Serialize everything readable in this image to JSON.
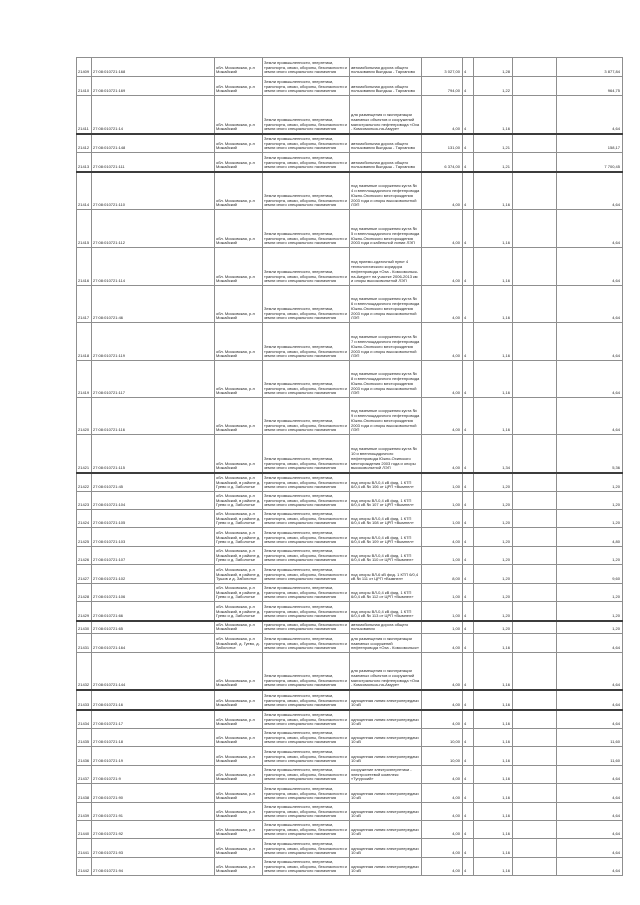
{
  "document": {
    "kind": "land-parcel-valuation-table-page",
    "text_color": "#1d1d1d",
    "grid_color": "#8f8f8f",
    "heavy_line_color": "#3c3c3c",
    "background": "#ffffff"
  },
  "table": {
    "defaults": {
      "location": "обл. Московская, р-н Можайский",
      "category": "Земли промышленности, энергетики, транспорта, связи, обороны, безопасности и земли иного специального назначения"
    },
    "rows": [
      {
        "id": "21409",
        "cadastral": "27:08:010721:168",
        "purpose": "автомобильная дорога общего пользования Вындыш - Тарханово",
        "area": "3 027,00",
        "group": "4",
        "rate": "1,28",
        "cost": "3 877,84",
        "h": 19,
        "thick": false
      },
      {
        "id": "21410",
        "cadastral": "27:08:010721:169",
        "purpose": "автомобильная дорога общего пользования Вындыш - Тарханово",
        "area": "794,00",
        "group": "4",
        "rate": "1,22",
        "cost": "964,75",
        "h": 19,
        "thick": false
      },
      {
        "id": "21411",
        "cadastral": "27:08:010721:14",
        "purpose": "для размещения и эксплуатации наземных объектов и сооружений магистрального нефтепровода «Оха - Комсомольск-на-Амуре»",
        "area": "4,00",
        "group": "4",
        "rate": "1,16",
        "cost": "4,64",
        "h": 38,
        "thick": true
      },
      {
        "id": "21412",
        "cadastral": "27:08:010721:148",
        "purpose": "автомобильная дорога общего пользования Вындыш - Тарханово",
        "area": "131,00",
        "group": "4",
        "rate": "1,21",
        "cost": "158,17",
        "h": 18,
        "thick": false
      },
      {
        "id": "21413",
        "cadastral": "27:08:010721:111",
        "purpose": "автомобильная дорога общего пользования Вындыш - Тарханово",
        "area": "6 374,00",
        "group": "4",
        "rate": "1,21",
        "cost": "7 700,45",
        "h": 19,
        "thick": true
      },
      {
        "id": "21414",
        "cadastral": "27:08:010721:110",
        "purpose": "под наземные сооружения куста № 4 и внеплощадочного нефтепровода Южно-Охинского месторождения 2003 года и опоры высоковольтной ЛЭП",
        "area": "4,00",
        "group": "4",
        "rate": "1,16",
        "cost": "4,64",
        "h": 37,
        "thick": false
      },
      {
        "id": "21415",
        "cadastral": "27:08:010721:112",
        "purpose": "под наземные сооружения куста № 5 и внеплощадочного нефтепровода Южно-Охинского месторождения 2003 года и кабельной линии ЛЭП",
        "area": "4,00",
        "group": "4",
        "rate": "1,16",
        "cost": "4,64",
        "h": 38,
        "thick": false
      },
      {
        "id": "21416",
        "cadastral": "27:08:010721:114",
        "purpose": "под приемо-сдаточный пункт 4 технологического коридора нефтепровода «Оха - Комсомольск-на-Амуре» на участке 2006-2013 км и опоры высоковольтной ЛЭП",
        "area": "4,00",
        "group": "4",
        "rate": "1,16",
        "cost": "4,64",
        "h": 38,
        "thick": false
      },
      {
        "id": "21417",
        "cadastral": "27:08:010721:46",
        "purpose": "под наземные сооружения куста № 6 и внеплощадочного нефтепровода Южно-Охинского месторождения 2003 года и опоры высоковольтной ЛЭП",
        "area": "4,00",
        "group": "4",
        "rate": "1,16",
        "cost": "4,64",
        "h": 37,
        "thick": false
      },
      {
        "id": "21418",
        "cadastral": "27:08:010721:119",
        "purpose": "под наземные сооружения куста № 7 и внеплощадочного нефтепровода Южно-Охинского месторождения 2003 года и опоры высоковольтной ЛЭП",
        "area": "4,00",
        "group": "4",
        "rate": "1,16",
        "cost": "4,64",
        "h": 38,
        "thick": false
      },
      {
        "id": "21419",
        "cadastral": "27:08:010721:117",
        "purpose": "под наземные сооружения куста № 8 и внеплощадочного нефтепровода Южно-Охинского месторождения 2003 года и опоры высоковольтной ЛЭП",
        "area": "4,00",
        "group": "4",
        "rate": "1,16",
        "cost": "4,64",
        "h": 37,
        "thick": false
      },
      {
        "id": "21420",
        "cadastral": "27:08:010721:116",
        "purpose": "под наземные сооружения куста № 9 и внеплощадочного нефтепровода Южно-Охинского месторождения 2003 года и опоры высоковольтной ЛЭП",
        "area": "4,00",
        "group": "4",
        "rate": "1,16",
        "cost": "4,64",
        "h": 37,
        "thick": false
      },
      {
        "id": "21421",
        "cadastral": "27:08:010721:115",
        "purpose": "под наземные сооружения куста № 10 и внеплощадочного нефтепровода Южно-Охинского месторождения 2003 года и опоры высоковольтной ЛЭП",
        "area": "4,00",
        "group": "4",
        "rate": "1,34",
        "cost": "5,36",
        "h": 38,
        "thick": true
      },
      {
        "id": "21422",
        "cadastral": "27:08:010721:45",
        "location": "обл. Московская, р-н Можайский, в районе д. Гуево и д. Заболотье",
        "purpose": "под опоры ВЛ-0,4 кВ фид. 1 КТП 6/0,4 кВ № 106 от ЦРП «Вымпел»",
        "area": "1,00",
        "group": "4",
        "rate": "1,20",
        "cost": "1,20",
        "h": 18,
        "thick": false
      },
      {
        "id": "21423",
        "cadastral": "27:08:010721:104",
        "location": "обл. Московская, р-н Можайский, в районе д. Гуево и д. Заболотье",
        "purpose": "под опоры ВЛ-0,4 кВ фид. 1 КТП 6/0,4 кВ № 107 от ЦРП «Вымпел»",
        "area": "1,00",
        "group": "4",
        "rate": "1,20",
        "cost": "1,20",
        "h": 18,
        "thick": false
      },
      {
        "id": "21424",
        "cadastral": "27:08:010721:105",
        "location": "обл. Московская, р-н Можайский, в районе д. Гуево и д. Заболотье",
        "purpose": "под опоры ВЛ-0,4 кВ фид. 1 КТП 6/0,4 кВ № 108 от ЦРП «Вымпел»",
        "area": "1,00",
        "group": "4",
        "rate": "1,20",
        "cost": "1,20",
        "h": 18,
        "thick": false
      },
      {
        "id": "21425",
        "cadastral": "27:08:010721:103",
        "location": "обл. Московская, р-н Можайский, в районе д. Гуево и д. Заболотье",
        "purpose": "под опоры ВЛ-0,4 кВ фид. 1 КТП 6/0,4 кВ № 109 от ЦРП «Вымпел»",
        "area": "4,00",
        "group": "4",
        "rate": "1,20",
        "cost": "4,80",
        "h": 19,
        "thick": false
      },
      {
        "id": "21426",
        "cadastral": "27:08:010721:107",
        "location": "обл. Московская, р-н Можайский, в районе д. Гуево и д. Заболотье",
        "purpose": "под опоры ВЛ-0,4 кВ фид. 1 КТП 6/0,4 кВ № 110 от ЦРП «Вымпел»",
        "area": "1,00",
        "group": "4",
        "rate": "1,20",
        "cost": "1,20",
        "h": 18,
        "thick": false
      },
      {
        "id": "21427",
        "cadastral": "27:08:010721:102",
        "location": "обл. Московская, р-н Можайский, в районе д. Тушов и д. Заболотье",
        "purpose": "под опоры ВЛ-6 кВ фид. 1 КТП 6/0,4 кВ № 111 от ЦРП «Вымпел»",
        "area": "8,00",
        "group": "4",
        "rate": "1,20",
        "cost": "9,60",
        "h": 19,
        "thick": false
      },
      {
        "id": "21428",
        "cadastral": "27:08:010721:106",
        "location": "обл. Московская, р-н Можайский, в районе д. Гуево и д. Заболотье",
        "purpose": "под опоры ВЛ-0,4 кВ фид. 1 КТП 6/0,4 кВ № 112 от ЦРП «Вымпел»",
        "area": "1,00",
        "group": "4",
        "rate": "1,20",
        "cost": "1,20",
        "h": 18,
        "thick": false
      },
      {
        "id": "21429",
        "cadastral": "27:08:010721:66",
        "location": "обл. Московская, р-н Можайский, в районе д. Гуево и д. Заболотье",
        "purpose": "под опоры ВЛ-0,4 кВ фид. 1 КТП 6/0,4 кВ № 113 от ЦРП «Вымпел»",
        "area": "1,00",
        "group": "4",
        "rate": "1,20",
        "cost": "1,20",
        "h": 19,
        "thick": true
      },
      {
        "id": "21430",
        "cadastral": "27:08:010721:65",
        "location": "обл. Московская, р-н Можайский",
        "purpose": "автомобильная дорога общего пользования",
        "area": "1,00",
        "group": "4",
        "rate": "1,20",
        "cost": "1,20",
        "h": 12,
        "thick": false
      },
      {
        "id": "21431",
        "cadastral": "27:08:010721:164",
        "location": "обл. Московская, р-н Можайский, д. Гуево, д. Заболотье",
        "purpose": "для размещения и эксплуатации наземных сооружений нефтепровода «Оха - Комсомольск»",
        "area": "4,00",
        "group": "4",
        "rate": "1,16",
        "cost": "4,64",
        "h": 19,
        "thick": false
      },
      {
        "id": "21432",
        "cadastral": "27:08:010721:144",
        "purpose": "для размещения и эксплуатации наземных объектов и сооружений магистрального нефтепровода «Оха - Комсомольск-на-Амуре»",
        "area": "4,00",
        "group": "4",
        "rate": "1,16",
        "cost": "4,64",
        "h": 37,
        "thick": true
      },
      {
        "id": "21433",
        "cadastral": "27:08:010721:16",
        "purpose": "одноцепная линия электропередачи 10 кВ",
        "area": "4,00",
        "group": "4",
        "rate": "1,16",
        "cost": "4,64",
        "h": 19,
        "thick": true
      },
      {
        "id": "21434",
        "cadastral": "27:08:010721:17",
        "purpose": "одноцепная линия электропередачи 10 кВ",
        "area": "4,00",
        "group": "4",
        "rate": "1,16",
        "cost": "4,64",
        "h": 18,
        "thick": false
      },
      {
        "id": "21435",
        "cadastral": "27:08:010721:18",
        "purpose": "одноцепная линия электропередачи 10 кВ",
        "area": "10,00",
        "group": "4",
        "rate": "1,16",
        "cost": "11,60",
        "h": 18,
        "thick": false
      },
      {
        "id": "21436",
        "cadastral": "27:08:010721:19",
        "purpose": "одноцепная линия электропередачи 10 кВ",
        "area": "10,00",
        "group": "4",
        "rate": "1,16",
        "cost": "11,60",
        "h": 19,
        "thick": false
      },
      {
        "id": "21437",
        "cadastral": "27:08:010721:9",
        "purpose": "сооружение электроэнергетики - электросетевой комплекс «Тугурский»",
        "area": "4,00",
        "group": "4",
        "rate": "1,16",
        "cost": "4,64",
        "h": 18,
        "thick": false
      },
      {
        "id": "21438",
        "cadastral": "27:08:010721:90",
        "purpose": "одноцепная линия электропередачи 10 кВ",
        "area": "4,00",
        "group": "4",
        "rate": "1,16",
        "cost": "4,64",
        "h": 19,
        "thick": false
      },
      {
        "id": "21439",
        "cadastral": "27:08:010721:91",
        "purpose": "одноцепная линия электропередачи 10 кВ",
        "area": "4,00",
        "group": "4",
        "rate": "1,16",
        "cost": "4,64",
        "h": 18,
        "thick": false
      },
      {
        "id": "21440",
        "cadastral": "27:08:010721:92",
        "purpose": "одноцепная линия электропередачи 10 кВ",
        "area": "4,00",
        "group": "4",
        "rate": "1,16",
        "cost": "4,64",
        "h": 18,
        "thick": false
      },
      {
        "id": "21441",
        "cadastral": "27:08:010721:93",
        "purpose": "одноцепная линия электропередачи 10 кВ",
        "area": "4,00",
        "group": "4",
        "rate": "1,16",
        "cost": "4,64",
        "h": 19,
        "thick": false
      },
      {
        "id": "21442",
        "cadastral": "27:08:010721:94",
        "purpose": "одноцепная линия электропередачи 10 кВ",
        "area": "4,00",
        "group": "4",
        "rate": "1,16",
        "cost": "4,64",
        "h": 18,
        "thick": false
      }
    ]
  }
}
